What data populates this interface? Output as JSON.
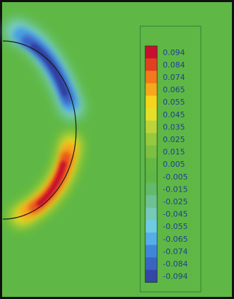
{
  "colors": {
    "background": "#5fb845",
    "border": "#111111",
    "legend_border": "#2f7f3a",
    "circle": "#1a1a1a"
  },
  "chart_data": {
    "type": "heatmap",
    "title": "",
    "xlabel": "",
    "ylabel": "",
    "colorbar": {
      "placement": "right",
      "levels": [
        {
          "label": "0.094",
          "value": 0.094,
          "color": "#c8102e"
        },
        {
          "label": "0.084",
          "value": 0.084,
          "color": "#e0401f"
        },
        {
          "label": "0.074",
          "value": 0.074,
          "color": "#f27a1d"
        },
        {
          "label": "0.065",
          "value": 0.065,
          "color": "#f6a81c"
        },
        {
          "label": "0.055",
          "value": 0.055,
          "color": "#f6d31c"
        },
        {
          "label": "0.045",
          "value": 0.045,
          "color": "#e4e02a"
        },
        {
          "label": "0.035",
          "value": 0.035,
          "color": "#bcd43a"
        },
        {
          "label": "0.025",
          "value": 0.025,
          "color": "#96c93f"
        },
        {
          "label": "0.015",
          "value": 0.015,
          "color": "#7cc043"
        },
        {
          "label": "0.005",
          "value": 0.005,
          "color": "#66b845"
        },
        {
          "label": "-0.005",
          "value": -0.005,
          "color": "#5fb845"
        },
        {
          "label": "-0.015",
          "value": -0.015,
          "color": "#62ba6a"
        },
        {
          "label": "-0.025",
          "value": -0.025,
          "color": "#6dc192"
        },
        {
          "label": "-0.045",
          "value": -0.045,
          "color": "#76c8b8"
        },
        {
          "label": "-0.055",
          "value": -0.055,
          "color": "#6fcbe0"
        },
        {
          "label": "-0.065",
          "value": -0.065,
          "color": "#55aee8"
        },
        {
          "label": "-0.074",
          "value": -0.074,
          "color": "#3f86d8"
        },
        {
          "label": "-0.084",
          "value": -0.084,
          "color": "#3a64c2"
        },
        {
          "label": "-0.094",
          "value": -0.094,
          "color": "#3446a6"
        }
      ]
    },
    "field": {
      "positive_region": {
        "location": "lower arc",
        "peak": 0.094
      },
      "negative_region": {
        "location": "upper arc",
        "peak": -0.094
      }
    }
  }
}
